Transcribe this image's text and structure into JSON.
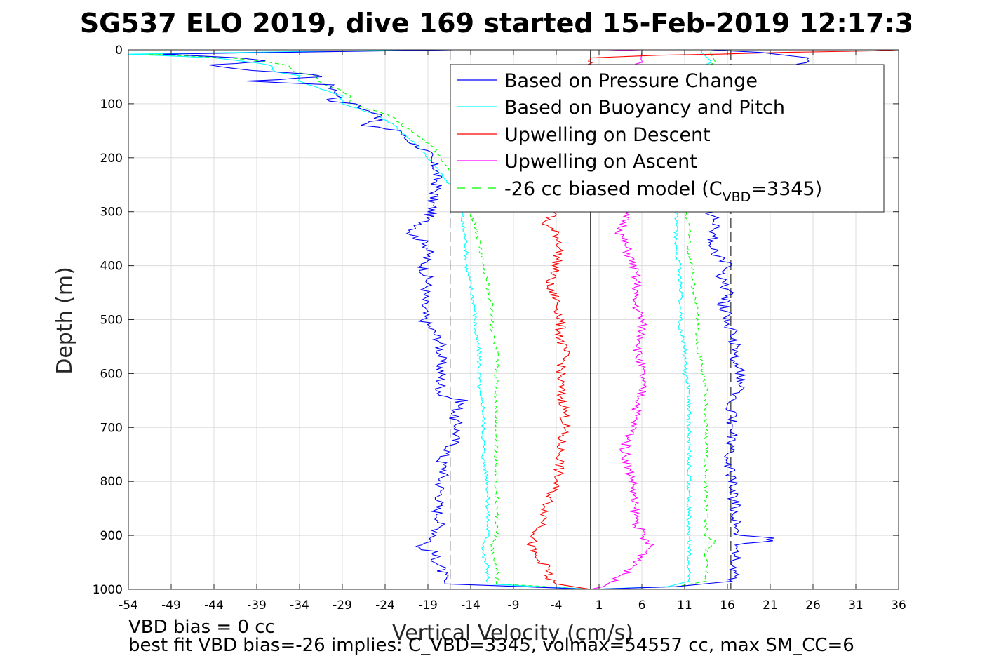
{
  "chart_data": {
    "type": "line",
    "title": "SG537 ELO 2019, dive 169 started 15-Feb-2019 12:17:3",
    "xlabel": "Vertical Velocity (cm/s)",
    "ylabel": "Depth (m)",
    "xlim": [
      -54,
      36
    ],
    "ylim": [
      1000,
      0
    ],
    "y_reversed": true,
    "grid": true,
    "x_ticks": [
      -54,
      -49,
      -44,
      -39,
      -34,
      -29,
      -24,
      -19,
      -14,
      -9,
      -4,
      1,
      6,
      11,
      16,
      21,
      26,
      31,
      36
    ],
    "y_ticks": [
      0,
      100,
      200,
      300,
      400,
      500,
      600,
      700,
      800,
      900,
      1000
    ],
    "legend_position": "top-right",
    "reference_lines": {
      "zero_velocity": 0,
      "dashed_bounds": [
        -16.4,
        16.4
      ]
    },
    "series": [
      {
        "name": "Based on Pressure Change",
        "color": "#0000ff",
        "style": "solid",
        "descent": {
          "depth": [
            0,
            8,
            15,
            20,
            28,
            35,
            45,
            50,
            58,
            65,
            75,
            85,
            95,
            100,
            110,
            120,
            130,
            140,
            150,
            160,
            170,
            180,
            190,
            200,
            220,
            240,
            260,
            280,
            300,
            320,
            340,
            360,
            380,
            400,
            430,
            460,
            500,
            540,
            580,
            620,
            640,
            650,
            680,
            700,
            730,
            760,
            780,
            800,
            830,
            850,
            870,
            900,
            915,
            920,
            930,
            960,
            990,
            995,
            1000
          ],
          "velocity": [
            -16,
            -50,
            -41,
            -38,
            -44,
            -42,
            -33,
            -31,
            -40,
            -30,
            -30,
            -29,
            -31,
            -27,
            -27,
            -24,
            -25,
            -27,
            -22,
            -22,
            -21,
            -20,
            -19,
            -19,
            -18,
            -18,
            -18,
            -18.5,
            -18.5,
            -19.5,
            -21,
            -19,
            -19,
            -19.5,
            -19,
            -19.5,
            -19.5,
            -17.5,
            -17.5,
            -17.5,
            -17.5,
            -15,
            -16,
            -15.5,
            -16,
            -17.5,
            -17,
            -17.5,
            -17.5,
            -18,
            -17.5,
            -18,
            -19,
            -20.5,
            -18.5,
            -17.5,
            -17,
            -8,
            0
          ]
        },
        "ascent": {
          "depth": [
            1000,
            995,
            985,
            960,
            930,
            915,
            910,
            905,
            900,
            880,
            850,
            820,
            800,
            780,
            760,
            720,
            700,
            680,
            650,
            620,
            600,
            580,
            550,
            520,
            500,
            470,
            450,
            420,
            400,
            380,
            360,
            340,
            320,
            300,
            280,
            250,
            200,
            150,
            100,
            50,
            15,
            5,
            0
          ],
          "velocity": [
            0,
            10,
            16.5,
            17,
            17,
            17.5,
            21,
            21.2,
            17.5,
            17,
            17,
            16.5,
            16.5,
            16.5,
            16,
            16.5,
            16.5,
            16.5,
            16.5,
            17.5,
            17.5,
            17,
            17,
            16.5,
            16,
            15.5,
            16,
            15,
            16.5,
            14.5,
            14,
            14.5,
            14.5,
            14,
            16.5,
            18,
            18.5,
            19.5,
            21,
            23,
            25.5,
            20,
            14
          ]
        }
      },
      {
        "name": "Based on Buoyancy and Pitch",
        "color": "#00ffff",
        "style": "solid",
        "descent": {
          "depth": [
            0,
            8,
            15,
            22,
            30,
            40,
            48,
            58,
            70,
            85,
            100,
            120,
            140,
            160,
            180,
            200,
            220,
            240,
            260,
            280,
            300,
            320,
            360,
            400,
            440,
            480,
            520,
            560,
            600,
            630,
            640,
            660,
            700,
            760,
            800,
            840,
            860,
            880,
            900,
            920,
            940,
            960,
            990,
            995,
            1000
          ],
          "velocity": [
            -20,
            -54,
            -44,
            -40,
            -37,
            -37,
            -34,
            -34,
            -32,
            -29,
            -29,
            -25,
            -23,
            -21.5,
            -20,
            -19,
            -18,
            -17,
            -16,
            -15.5,
            -15,
            -15,
            -14.5,
            -14.5,
            -14,
            -13.5,
            -13.5,
            -13,
            -13,
            -13,
            -13,
            -12.5,
            -12.5,
            -12.5,
            -12,
            -12,
            -12,
            -12,
            -12,
            -12.5,
            -12.5,
            -12,
            -12,
            -6,
            0
          ]
        },
        "ascent": {
          "depth": [
            1000,
            995,
            985,
            960,
            930,
            900,
            880,
            860,
            840,
            820,
            800,
            780,
            750,
            720,
            700,
            680,
            650,
            620,
            600,
            580,
            550,
            520,
            500,
            480,
            450,
            420,
            400,
            380,
            350,
            330,
            310,
            300,
            260,
            200,
            150,
            100,
            60,
            20,
            5,
            0
          ],
          "velocity": [
            0,
            9,
            11.5,
            11.5,
            11.5,
            11.5,
            11.5,
            11.5,
            11.5,
            11.5,
            11.5,
            11.5,
            11.5,
            11.5,
            11.5,
            11.5,
            11.5,
            11.5,
            11,
            11,
            11,
            10.5,
            10.5,
            10.5,
            10.5,
            10.5,
            10.5,
            10,
            10,
            10,
            10,
            10,
            10,
            10,
            10,
            10,
            13,
            14,
            13,
            13
          ]
        }
      },
      {
        "name": "Upwelling on Descent",
        "color": "#ff0000",
        "style": "solid",
        "profile": {
          "depth": [
            0,
            2,
            5,
            8,
            10,
            15,
            300,
            320,
            340,
            360,
            400,
            440,
            460,
            500,
            540,
            560,
            600,
            640,
            660,
            700,
            720,
            760,
            800,
            840,
            880,
            900,
            920,
            940,
            960,
            980,
            990,
            995,
            1000
          ],
          "velocity": [
            36,
            33,
            22,
            15,
            8,
            0,
            -4,
            -5.5,
            -4,
            -3.5,
            -4,
            -5,
            -4,
            -3.5,
            -3.5,
            -3,
            -3.5,
            -3.5,
            -3,
            -3,
            -3.5,
            -3.5,
            -4,
            -5,
            -5.5,
            -6.5,
            -7,
            -6.5,
            -5,
            -5,
            -4,
            -2,
            0
          ]
        }
      },
      {
        "name": "Upwelling on Ascent",
        "color": "#ff00ff",
        "style": "solid",
        "profile": {
          "depth": [
            0,
            2,
            300,
            320,
            340,
            360,
            400,
            440,
            460,
            500,
            540,
            560,
            600,
            640,
            660,
            700,
            740,
            780,
            800,
            840,
            880,
            900,
            920,
            940,
            960,
            980,
            995,
            1000
          ],
          "velocity": [
            2,
            6,
            4,
            4,
            3.5,
            4,
            5,
            5.5,
            5,
            6,
            6,
            5.5,
            6,
            6,
            5.5,
            5,
            4,
            4.5,
            5,
            5,
            5.5,
            6,
            7,
            6,
            5,
            3,
            1.5,
            0
          ]
        }
      },
      {
        "name": "-26 cc biased model (C_VBD=3345)",
        "color": "#00ff00",
        "style": "dashed",
        "descent": {
          "depth": [
            0,
            8,
            15,
            22,
            30,
            40,
            48,
            58,
            70,
            85,
            100,
            120,
            140,
            160,
            180,
            200,
            220,
            240,
            260,
            280,
            300,
            320,
            360,
            400,
            440,
            480,
            520,
            560,
            600,
            630,
            640,
            660,
            700,
            760,
            800,
            840,
            880,
            900,
            920,
            940,
            960,
            990,
            995,
            1000
          ],
          "velocity": [
            -18,
            -52,
            -42,
            -38,
            -35,
            -35,
            -32,
            -32,
            -30,
            -28,
            -28,
            -23.5,
            -22,
            -20,
            -18.5,
            -17.5,
            -16.5,
            -15.5,
            -15,
            -14.5,
            -14,
            -13.5,
            -13,
            -12.5,
            -12,
            -11.5,
            -11.5,
            -11,
            -11,
            -11,
            -11,
            -11,
            -11,
            -11,
            -11,
            -11,
            -11,
            -11,
            -11.5,
            -11.5,
            -11,
            -11,
            -5,
            0
          ]
        },
        "ascent": {
          "depth": [
            1000,
            995,
            985,
            960,
            930,
            910,
            900,
            880,
            850,
            820,
            800,
            780,
            750,
            720,
            700,
            680,
            650,
            620,
            600,
            580,
            550,
            520,
            500,
            480,
            450,
            420,
            400,
            380,
            350,
            330,
            310,
            300,
            260,
            200,
            150,
            100,
            60,
            20,
            5,
            0
          ],
          "velocity": [
            0,
            10,
            13.5,
            13.5,
            13.5,
            14.5,
            13.5,
            13.5,
            13.5,
            13.5,
            13.5,
            13.5,
            13.5,
            13.5,
            13.5,
            13.5,
            13.5,
            13.5,
            13,
            13,
            12.5,
            12.5,
            12.5,
            12.5,
            12,
            12,
            12,
            11.5,
            11.5,
            11.5,
            11,
            11,
            11,
            11,
            11,
            11,
            13.5,
            14.5,
            14,
            14
          ]
        }
      }
    ],
    "notes": [
      "VBD bias = 0 cc",
      "best fit VBD bias=-26 implies: C_VBD=3345, volmax=54557 cc, max SM_CC=6"
    ]
  }
}
